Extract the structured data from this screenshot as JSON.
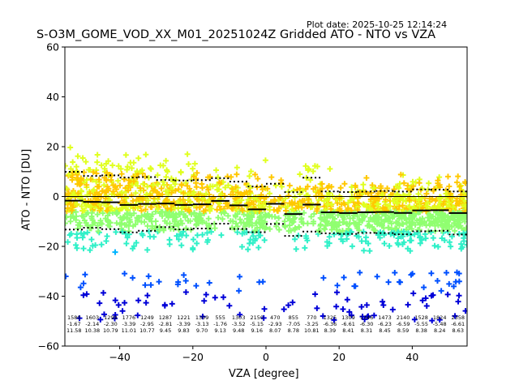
{
  "plot_date": "Plot date: 2025-10-25 12:14:24",
  "chart_data": {
    "type": "scatter",
    "title": "S-O3M_GOME_VOD_XX_M01_20251024Z Gridded ATO - NTO vs VZA",
    "xlabel": "VZA [degree]",
    "ylabel": "ATO - NTO [DU]",
    "xlim": [
      -55,
      55
    ],
    "ylim": [
      -60,
      60
    ],
    "xticks": [
      -40,
      -20,
      0,
      20,
      40
    ],
    "xtick_labels": [
      "−40",
      "−20",
      "0",
      "20",
      "40"
    ],
    "yticks": [
      -60,
      -40,
      -20,
      0,
      20,
      40,
      60
    ],
    "ytick_labels": [
      "−60",
      "−40",
      "−20",
      "0",
      "20",
      "40",
      "60"
    ],
    "bin_width": 5,
    "bins": [
      {
        "x0": -55,
        "count": "1580",
        "mean": "-1.67",
        "std": "11.58"
      },
      {
        "x0": -50,
        "count": "1603",
        "mean": "-2.14",
        "std": "10.38"
      },
      {
        "x0": -45,
        "count": "1299",
        "mean": "-2.30",
        "std": "10.79"
      },
      {
        "x0": -40,
        "count": "1776",
        "mean": "-3.39",
        "std": "11.01"
      },
      {
        "x0": -35,
        "count": "1249",
        "mean": "-2.95",
        "std": "10.77"
      },
      {
        "x0": -30,
        "count": "1287",
        "mean": "-2.81",
        "std": "9.45"
      },
      {
        "x0": -25,
        "count": "1221",
        "mean": "-3.39",
        "std": "9.83"
      },
      {
        "x0": -20,
        "count": "1309",
        "mean": "-3.13",
        "std": "9.70"
      },
      {
        "x0": -15,
        "count": "555",
        "mean": "-1.76",
        "std": "9.13"
      },
      {
        "x0": -10,
        "count": "1303",
        "mean": "-3.52",
        "std": "9.48"
      },
      {
        "x0": -5,
        "count": "2150",
        "mean": "-5.15",
        "std": "9.16"
      },
      {
        "x0": 0,
        "count": "470",
        "mean": "-2.93",
        "std": "8.07"
      },
      {
        "x0": 5,
        "count": "855",
        "mean": "-7.05",
        "std": "8.78"
      },
      {
        "x0": 10,
        "count": "770",
        "mean": "-3.25",
        "std": "10.81"
      },
      {
        "x0": 15,
        "count": "1325",
        "mean": "-6.36",
        "std": "8.39"
      },
      {
        "x0": 20,
        "count": "1309",
        "mean": "-6.61",
        "std": "8.41"
      },
      {
        "x0": 25,
        "count": "1346",
        "mean": "-6.30",
        "std": "8.31"
      },
      {
        "x0": 30,
        "count": "1473",
        "mean": "-6.23",
        "std": "8.45"
      },
      {
        "x0": 35,
        "count": "2140",
        "mean": "-6.59",
        "std": "8.59"
      },
      {
        "x0": 40,
        "count": "1528",
        "mean": "-5.55",
        "std": "8.38"
      },
      {
        "x0": 45,
        "count": "1824",
        "mean": "-5.48",
        "std": "8.24"
      },
      {
        "x0": 50,
        "count": "2358",
        "mean": "-6.61",
        "std": "8.63"
      }
    ],
    "colormap": [
      "#0000d8",
      "#0050ff",
      "#00b4ff",
      "#30f0c8",
      "#90ff70",
      "#e0ff20",
      "#ffc800"
    ],
    "zero_line": 0
  }
}
